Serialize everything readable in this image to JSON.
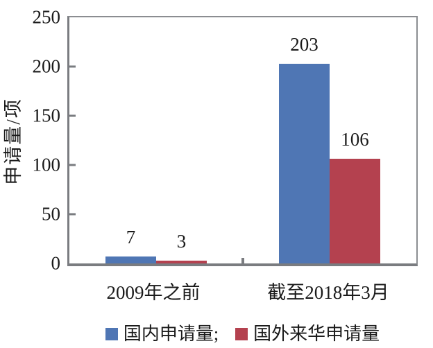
{
  "chart_data": {
    "type": "bar",
    "title": "",
    "categories": [
      "2009年之前",
      "截至2018年3月"
    ],
    "series": [
      {
        "name": "国内申请量",
        "color": "#4f76b4",
        "values": [
          7,
          203
        ]
      },
      {
        "name": "国外来华申请量",
        "color": "#b4414f",
        "values": [
          3,
          106
        ]
      }
    ],
    "xlabel": "",
    "ylabel": "申请量/项",
    "ylim": [
      0,
      250
    ],
    "yticks": [
      0,
      50,
      100,
      150,
      200,
      250
    ],
    "grid": false,
    "data_labels": true,
    "legend_position": "bottom"
  },
  "legend": {
    "items": [
      {
        "label": "国内申请量;",
        "color": "#4f76b4"
      },
      {
        "label": "国外来华申请量",
        "color": "#b4414f"
      }
    ]
  },
  "colors": {
    "axis": "#7a7c80",
    "frame": "#8b8d91",
    "text": "#1a1a1a",
    "background": "#ffffff"
  }
}
